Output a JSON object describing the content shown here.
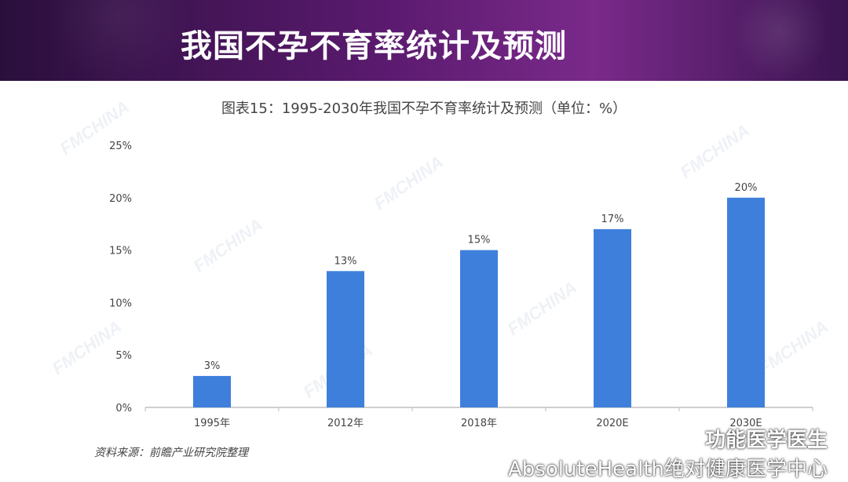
{
  "slide": {
    "title": "我国不孕不育率统计及预测"
  },
  "chart_data": {
    "type": "bar",
    "title": "图表15：1995-2030年我国不孕不育率统计及预测（单位：%）",
    "categories": [
      "1995年",
      "2012年",
      "2018年",
      "2020E",
      "2030E"
    ],
    "values": [
      3,
      13,
      15,
      17,
      20
    ],
    "data_labels": [
      "3%",
      "13%",
      "15%",
      "17%",
      "20%"
    ],
    "yticks": [
      "0%",
      "5%",
      "10%",
      "15%",
      "20%",
      "25%"
    ],
    "ylim": [
      0,
      25
    ],
    "bar_color": "#3f7fdc",
    "grid": false,
    "legend": false
  },
  "source": {
    "text": "资料来源：前瞻产业研究院整理"
  },
  "watermark": {
    "text": "FMCHINA"
  },
  "brand": {
    "name": "功能医学医生",
    "subtitle": "AbsoluteHealth绝对健康医学中心",
    "icon": "wechat-icon"
  },
  "colors": {
    "header_dark": "#2a0f3c",
    "header_accent": "#7a2a8a",
    "axis": "#bfbfbf",
    "text": "#444444"
  }
}
